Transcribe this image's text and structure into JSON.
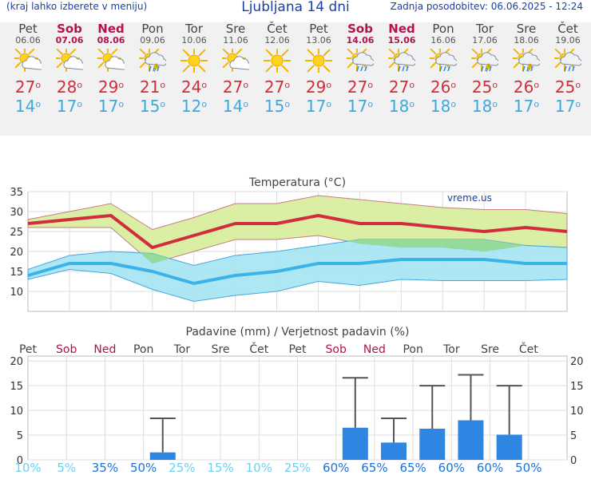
{
  "header": {
    "hint": "(kraj lahko izberete v meniju)",
    "title": "Ljubljana 14 dni",
    "updated": "Zadnja posodobitev: 06.06.2025 - 12:24"
  },
  "degree_symbol": "o",
  "days": [
    {
      "name": "Pet",
      "date": "06.06",
      "weekend": false,
      "icon": "sun-cloud-icon",
      "tmax": "27",
      "tmin": "14"
    },
    {
      "name": "Sob",
      "date": "07.06",
      "weekend": true,
      "icon": "sun-cloud-icon",
      "tmax": "28",
      "tmin": "17"
    },
    {
      "name": "Ned",
      "date": "08.06",
      "weekend": true,
      "icon": "sun-cloud-icon",
      "tmax": "29",
      "tmin": "17"
    },
    {
      "name": "Pon",
      "date": "09.06",
      "weekend": false,
      "icon": "sun-storm-icon",
      "tmax": "21",
      "tmin": "15"
    },
    {
      "name": "Tor",
      "date": "10.06",
      "weekend": false,
      "icon": "sun-icon",
      "tmax": "24",
      "tmin": "12"
    },
    {
      "name": "Sre",
      "date": "11.06",
      "weekend": false,
      "icon": "sun-cloud-icon",
      "tmax": "27",
      "tmin": "14"
    },
    {
      "name": "Čet",
      "date": "12.06",
      "weekend": false,
      "icon": "sun-icon",
      "tmax": "27",
      "tmin": "15"
    },
    {
      "name": "Pet",
      "date": "13.06",
      "weekend": false,
      "icon": "sun-icon",
      "tmax": "29",
      "tmin": "17"
    },
    {
      "name": "Sob",
      "date": "14.06",
      "weekend": true,
      "icon": "sun-rain-icon",
      "tmax": "27",
      "tmin": "17"
    },
    {
      "name": "Ned",
      "date": "15.06",
      "weekend": true,
      "icon": "sun-rain-icon",
      "tmax": "27",
      "tmin": "18"
    },
    {
      "name": "Pon",
      "date": "16.06",
      "weekend": false,
      "icon": "sun-rain-icon",
      "tmax": "26",
      "tmin": "18"
    },
    {
      "name": "Tor",
      "date": "17.06",
      "weekend": false,
      "icon": "sun-storm-icon",
      "tmax": "25",
      "tmin": "18"
    },
    {
      "name": "Sre",
      "date": "18.06",
      "weekend": false,
      "icon": "sun-storm-icon",
      "tmax": "26",
      "tmin": "17"
    },
    {
      "name": "Čet",
      "date": "19.06",
      "weekend": false,
      "icon": "sun-rain-icon",
      "tmax": "25",
      "tmin": "17"
    }
  ],
  "chart_data": [
    {
      "type": "line",
      "title": "Temperatura (°C)",
      "watermark": "vreme.us",
      "categories": [
        "Pet",
        "Sob",
        "Ned",
        "Pon",
        "Tor",
        "Sre",
        "Čet",
        "Pet",
        "Sob",
        "Ned",
        "Pon",
        "Tor",
        "Sre",
        "Čet"
      ],
      "ylim": [
        5,
        35
      ],
      "yticks": [
        10,
        15,
        20,
        25,
        30,
        35
      ],
      "grid": true,
      "colors": {
        "max": "#d22d3c",
        "min": "#39b3ea",
        "max_band": "#d6ec9a",
        "max_band_edge": "#c67e7e",
        "min_band": "#a5e4f3",
        "min_band_edge": "#46a7e0",
        "overlap": "#93d892"
      },
      "series": [
        {
          "name": "max",
          "values": [
            27,
            28,
            29,
            21,
            24,
            27,
            27,
            29,
            27,
            27,
            26,
            25,
            26,
            25
          ]
        },
        {
          "name": "max_upper",
          "values": [
            28,
            30,
            32,
            25.5,
            28.5,
            32,
            32,
            34,
            33,
            32,
            31,
            30.5,
            30.5,
            29.5
          ]
        },
        {
          "name": "max_lower",
          "values": [
            26,
            26,
            26,
            17,
            20,
            23,
            23,
            24,
            22,
            21,
            21,
            20,
            21.5,
            21
          ]
        },
        {
          "name": "min",
          "values": [
            14,
            17,
            17,
            15,
            12,
            14,
            15,
            17,
            17,
            18,
            18,
            18,
            17,
            17
          ]
        },
        {
          "name": "min_upper",
          "values": [
            15.5,
            19,
            20,
            19.5,
            16.5,
            19,
            20,
            21.5,
            23,
            23,
            23,
            23,
            21.5,
            21
          ]
        },
        {
          "name": "min_lower",
          "values": [
            13,
            15.5,
            14.5,
            10.5,
            7.5,
            9,
            10,
            12.5,
            11.5,
            13,
            12.7,
            12.7,
            12.7,
            13
          ]
        }
      ]
    },
    {
      "type": "bar",
      "title": "Padavine (mm) / Verjetnost padavin (%)",
      "categories": [
        "Pet",
        "Sob",
        "Ned",
        "Pon",
        "Tor",
        "Sre",
        "Čet",
        "Pet",
        "Sob",
        "Ned",
        "Pon",
        "Tor",
        "Sre",
        "Čet"
      ],
      "weekend": [
        false,
        true,
        true,
        false,
        false,
        false,
        false,
        false,
        true,
        true,
        false,
        false,
        false,
        false
      ],
      "ylim": [
        0,
        21
      ],
      "yticks": [
        0,
        5,
        10,
        15,
        20
      ],
      "grid": true,
      "values": [
        0,
        0,
        0,
        1.5,
        0,
        0,
        0,
        0,
        6.5,
        3.5,
        6.3,
        8,
        5.1,
        0
      ],
      "whisker_max": [
        null,
        null,
        null,
        8.4,
        null,
        null,
        null,
        null,
        16.6,
        8.4,
        15,
        17.2,
        15,
        null
      ],
      "probability": [
        "10%",
        "5%",
        "35%",
        "50%",
        "25%",
        "15%",
        "10%",
        "25%",
        "60%",
        "65%",
        "65%",
        "60%",
        "60%",
        "50%"
      ],
      "colors": {
        "bar": "#2f86e2",
        "whisker": "#555555",
        "prob_low": "#6ed0f0",
        "prob_high": "#1c73d6"
      }
    }
  ]
}
